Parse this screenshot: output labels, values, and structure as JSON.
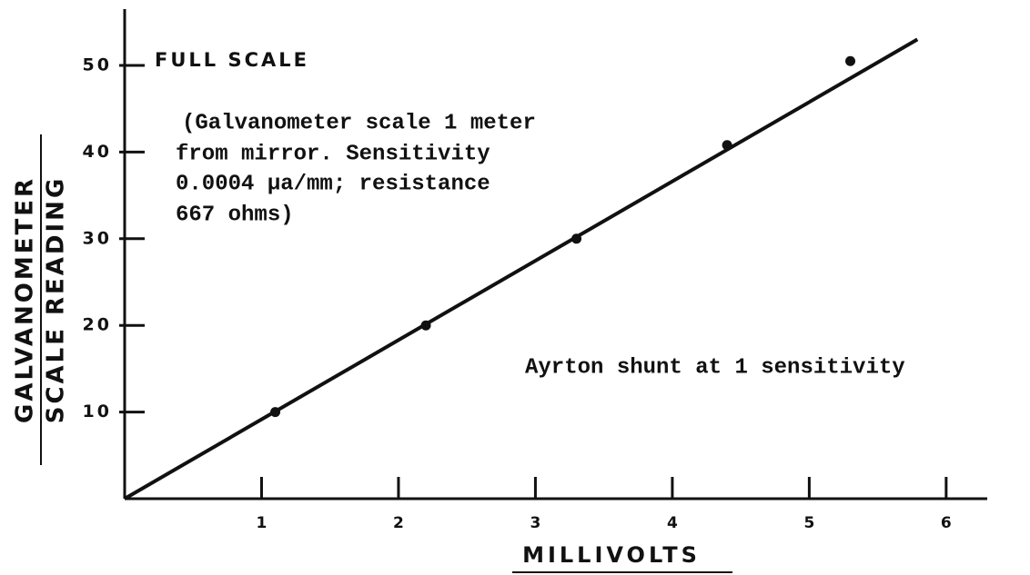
{
  "chart_data": {
    "type": "scatter",
    "x_label": "MILLIVOLTS",
    "y_label": [
      "GALVANOMETER",
      "SCALE READING"
    ],
    "annotations": [
      "FULL SCALE",
      "(Galvanometer scale 1 meter",
      "from mirror.  Sensitivity",
      "0.0004 μa/mm; resistance",
      "667 ohms)",
      "Ayrton shunt at 1 sensitivity"
    ],
    "xlim": [
      0,
      6.3
    ],
    "ylim": [
      0,
      56.5
    ],
    "xticks": [
      1,
      2,
      3,
      4,
      5,
      6
    ],
    "yticks": [
      10,
      20,
      30,
      40,
      50
    ],
    "series": [
      {
        "kind": "points",
        "color": "#111",
        "x": [
          1.1,
          2.2,
          3.3,
          4.4,
          5.3
        ],
        "values": [
          10,
          20,
          30,
          40.8,
          50.5
        ]
      },
      {
        "kind": "line",
        "color": "#111",
        "x": [
          0,
          5.79
        ],
        "values": [
          0,
          53
        ]
      }
    ]
  }
}
